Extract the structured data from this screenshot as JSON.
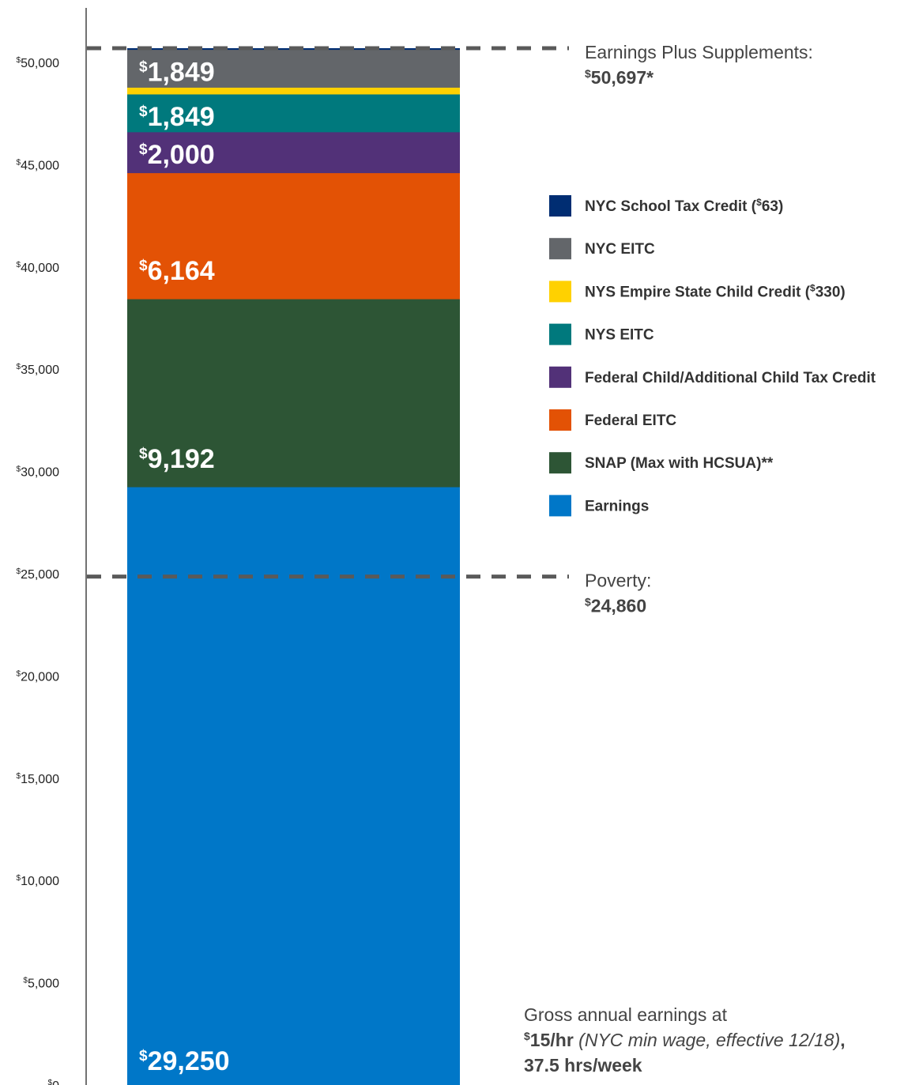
{
  "chart_data": {
    "type": "bar",
    "stacked": true,
    "ylim": [
      0,
      51200
    ],
    "y_ticks": [
      {
        "value": 0,
        "label": "0"
      },
      {
        "value": 5000,
        "label": "5,000"
      },
      {
        "value": 10000,
        "label": "10,000"
      },
      {
        "value": 15000,
        "label": "15,000"
      },
      {
        "value": 20000,
        "label": "20,000"
      },
      {
        "value": 25000,
        "label": "25,000"
      },
      {
        "value": 30000,
        "label": "30,000"
      },
      {
        "value": 35000,
        "label": "35,000"
      },
      {
        "value": 40000,
        "label": "40,000"
      },
      {
        "value": 45000,
        "label": "45,000"
      },
      {
        "value": 50000,
        "label": "50,000"
      }
    ],
    "currency_symbol": "$",
    "segments": [
      {
        "name": "Earnings",
        "value": 29250,
        "label": "29,250",
        "color": "#0077c8"
      },
      {
        "name": "SNAP (Max with HCSUA)**",
        "value": 9192,
        "label": "9,192",
        "color": "#2d5535"
      },
      {
        "name": "Federal EITC",
        "value": 6164,
        "label": "6,164",
        "color": "#e35205"
      },
      {
        "name": "Federal Child/Additional Child Tax Credit",
        "value": 2000,
        "label": "2,000",
        "color": "#523178"
      },
      {
        "name": "NYS EITC",
        "value": 1849,
        "label": "1,849",
        "color": "#00797d"
      },
      {
        "name": "NYS Empire State Child Credit (",
        "value": 330,
        "label": "",
        "suffix": "330)",
        "color": "#ffd100"
      },
      {
        "name": "NYC EITC",
        "value": 1849,
        "label": "1,849",
        "color": "#63666a"
      },
      {
        "name": "NYC School Tax Credit (",
        "value": 63,
        "label": "",
        "suffix": "63)",
        "color": "#002d72"
      }
    ],
    "legend_order": [
      7,
      6,
      5,
      4,
      3,
      2,
      1,
      0
    ],
    "reference_lines": [
      {
        "value": 50697,
        "label": "Earnings Plus Supplements:",
        "value_text": "50,697*"
      },
      {
        "value": 24860,
        "label": "Poverty:",
        "value_text": "24,860"
      }
    ],
    "note": {
      "line1": "Gross annual earnings at",
      "rate": "15/hr",
      "detail": " (NYC min wage, effective 12/18)",
      "comma": ",",
      "line3": "37.5 hrs/week"
    }
  }
}
